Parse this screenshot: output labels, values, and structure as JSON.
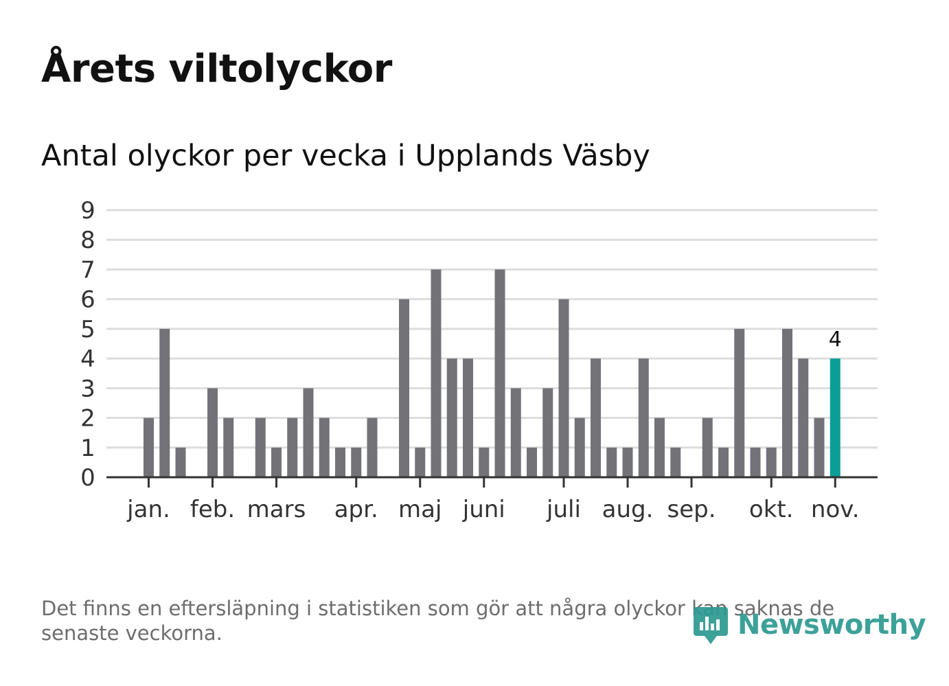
{
  "title": "Årets viltolyckor",
  "subtitle": "Antal olyckor per vecka i Upplands Väsby",
  "footnote": "Det finns en eftersläpning i statistiken som gör att några olyckor kan saknas de senaste veckorna.",
  "logo": {
    "text": "Newsworthy",
    "icon": "newsworthy-bar-chart-icon"
  },
  "colors": {
    "bar": "#737278",
    "highlight": "#0a9e96",
    "grid": "#dddddd",
    "axis": "#333333",
    "tick_text": "#333333",
    "logo": "#2c9a91"
  },
  "chart_data": {
    "type": "bar",
    "title": "Antal olyckor per vecka i Upplands Väsby",
    "xlabel": "",
    "ylabel": "",
    "ylim": [
      0,
      9
    ],
    "yticks": [
      0,
      1,
      2,
      3,
      4,
      5,
      6,
      7,
      8,
      9
    ],
    "grid": true,
    "weeks": [
      1,
      2,
      3,
      4,
      5,
      6,
      7,
      8,
      9,
      10,
      11,
      12,
      13,
      14,
      15,
      16,
      17,
      18,
      19,
      20,
      21,
      22,
      23,
      24,
      25,
      26,
      27,
      28,
      29,
      30,
      31,
      32,
      33,
      34,
      35,
      36,
      37,
      38,
      39,
      40,
      41,
      42,
      43,
      44,
      45,
      46
    ],
    "values": [
      0,
      0,
      2,
      5,
      1,
      0,
      3,
      2,
      0,
      2,
      1,
      2,
      3,
      2,
      1,
      1,
      2,
      0,
      6,
      1,
      7,
      4,
      4,
      1,
      7,
      3,
      1,
      3,
      6,
      2,
      4,
      1,
      1,
      4,
      2,
      1,
      0,
      2,
      1,
      5,
      1,
      1,
      5,
      4,
      2,
      4
    ],
    "month_ticks": [
      {
        "label": "jan.",
        "week": 3
      },
      {
        "label": "feb.",
        "week": 7
      },
      {
        "label": "mars",
        "week": 11
      },
      {
        "label": "apr.",
        "week": 16
      },
      {
        "label": "maj",
        "week": 20
      },
      {
        "label": "juni",
        "week": 24
      },
      {
        "label": "juli",
        "week": 29
      },
      {
        "label": "aug.",
        "week": 33
      },
      {
        "label": "sep.",
        "week": 37
      },
      {
        "label": "okt.",
        "week": 42
      },
      {
        "label": "nov.",
        "week": 46
      }
    ],
    "highlight_index": 45,
    "highlight_label": "4"
  }
}
